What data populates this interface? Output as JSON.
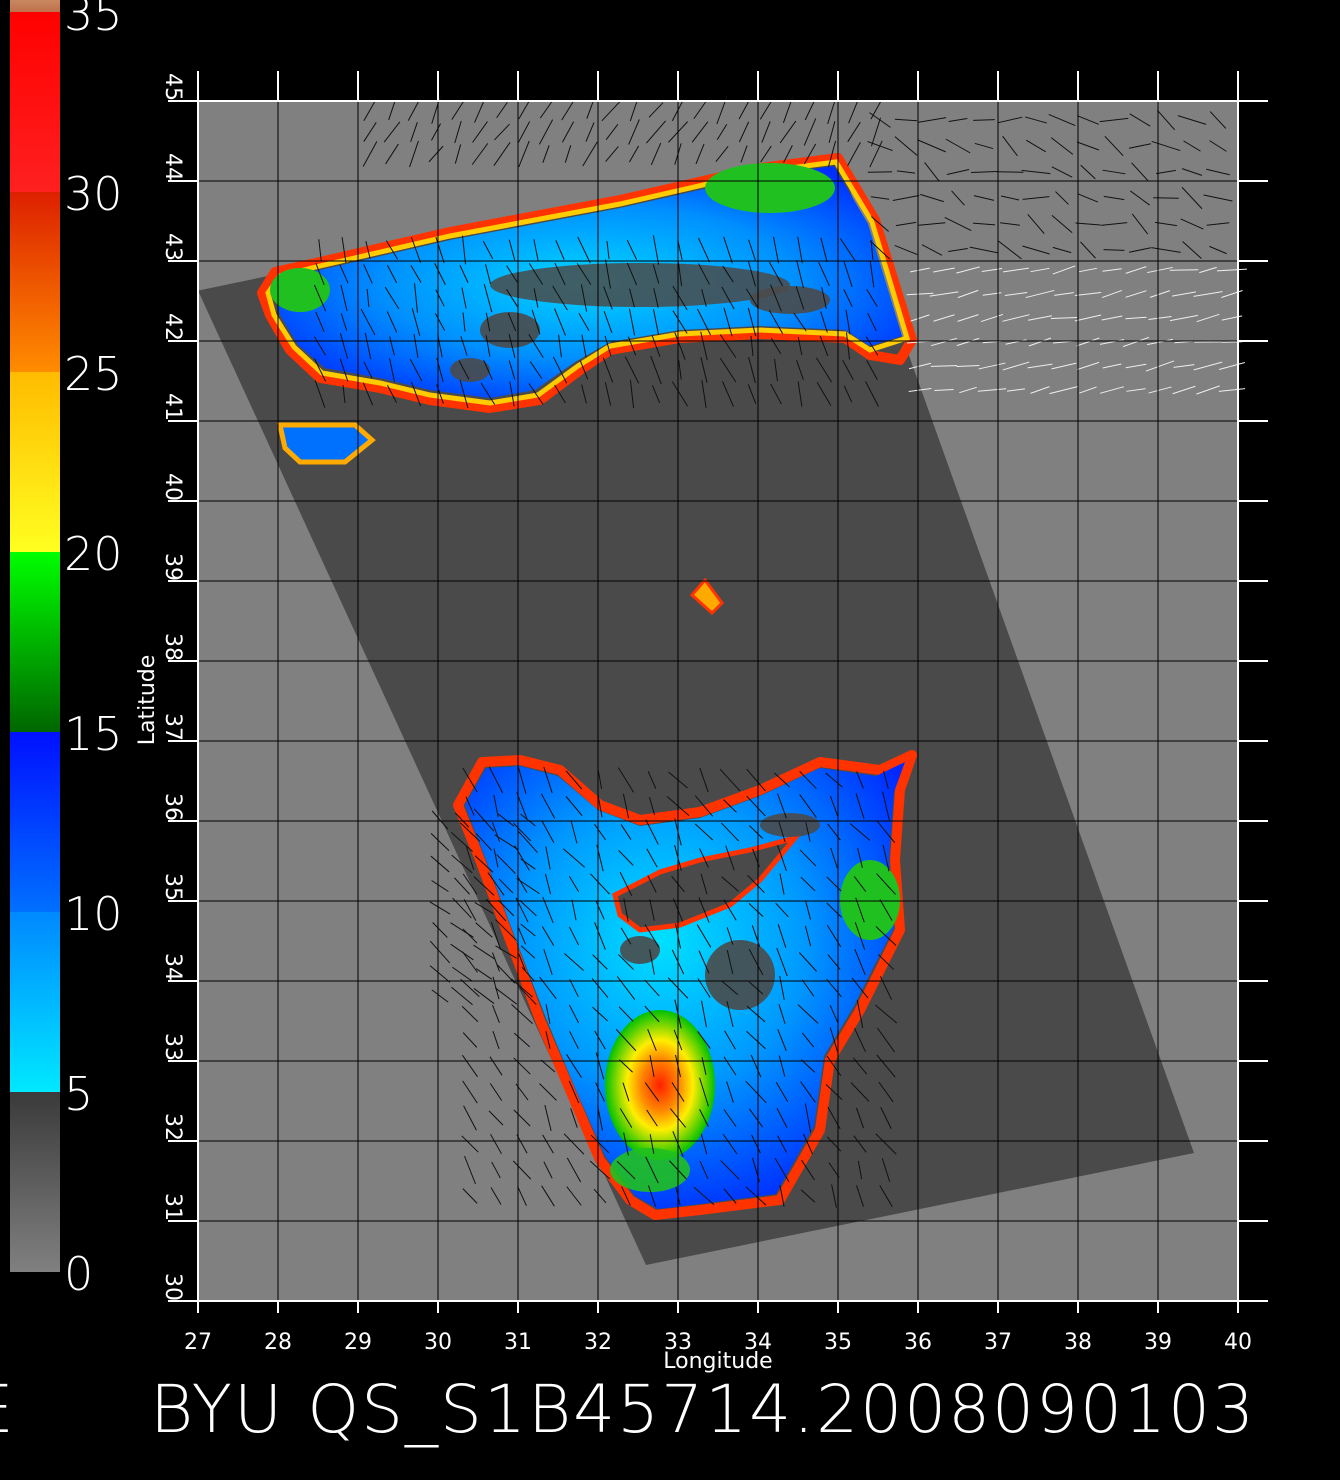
{
  "colorbar": {
    "labels": [
      "0",
      "5",
      "10",
      "15",
      "20",
      "25",
      "30",
      "35"
    ],
    "min": 0,
    "max": 35,
    "segments": [
      {
        "from": 0,
        "to": 5,
        "color_bottom": "#808080",
        "color_top": "#3a3a3a"
      },
      {
        "from": 5,
        "to": 10,
        "color_bottom": "#00e8ff",
        "color_top": "#0088ff"
      },
      {
        "from": 10,
        "to": 15,
        "color_bottom": "#0070ff",
        "color_top": "#0010ff"
      },
      {
        "from": 15,
        "to": 20,
        "color_bottom": "#006600",
        "color_top": "#00ff00"
      },
      {
        "from": 20,
        "to": 25,
        "color_bottom": "#ffff20",
        "color_top": "#ffbb00"
      },
      {
        "from": 25,
        "to": 30,
        "color_bottom": "#ff8c00",
        "color_top": "#dd2000"
      },
      {
        "from": 30,
        "to": 35,
        "color_bottom": "#ff2020",
        "color_top": "#ff0000"
      },
      {
        "from": 35,
        "to": 36.5,
        "color_bottom": "#c0704a",
        "color_top": "#c88860"
      }
    ]
  },
  "map": {
    "lon_range": [
      27,
      40
    ],
    "lat_range": [
      30,
      45
    ],
    "lon_ticks": [
      "27",
      "28",
      "29",
      "30",
      "31",
      "32",
      "33",
      "34",
      "35",
      "36",
      "37",
      "38",
      "39",
      "40"
    ],
    "lat_ticks": [
      "30",
      "31",
      "32",
      "33",
      "34",
      "35",
      "36",
      "37",
      "38",
      "39",
      "40",
      "41",
      "42",
      "43",
      "44",
      "45"
    ],
    "xlabel": "Longitude",
    "ylabel": "Latitude",
    "background_color": "#808080",
    "swath_color": "#4a4a4a",
    "swath_corners_lonlat": [
      [
        27.0,
        42.63
      ],
      [
        35.0,
        44.3
      ],
      [
        39.45,
        31.85
      ],
      [
        32.6,
        30.45
      ]
    ],
    "land_color": "#4a4a4a"
  },
  "footer": {
    "left_fragment": "E",
    "title": "BYU  QS_S1B45714.2008090103"
  }
}
